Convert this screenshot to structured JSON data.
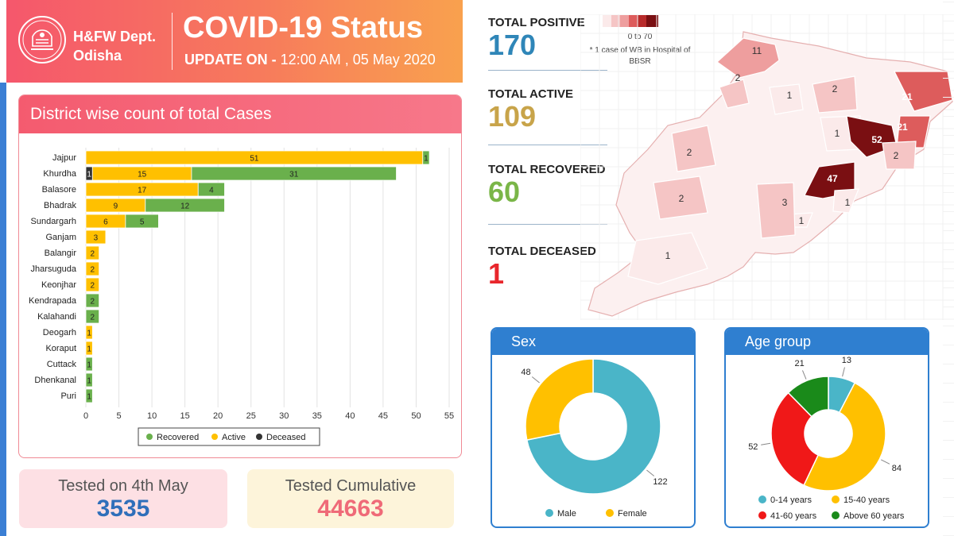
{
  "header": {
    "dept_line1": "H&FW Dept.",
    "dept_line2": "Odisha",
    "title": "COVID-19 Status",
    "update_prefix": "UPDATE ON - ",
    "update_value": "12:00 AM , 05 May 2020"
  },
  "district_chart_title": "District wise count of total Cases",
  "stats": {
    "positive": {
      "label": "TOTAL POSITIVE",
      "value": "170",
      "color": "#2f86b8"
    },
    "active": {
      "label": "TOTAL ACTIVE",
      "value": "109",
      "color": "#c8a44a"
    },
    "recovered": {
      "label": "TOTAL RECOVERED",
      "value": "60",
      "color": "#7ab648"
    },
    "deceased": {
      "label": "TOTAL DECEASED",
      "value": "1",
      "color": "#e8262c"
    }
  },
  "map_legend": {
    "range": "0 to 70",
    "note": "* 1 case of WB in Hospital of BBSR",
    "colors": [
      "#fbeaea",
      "#f5c5c5",
      "#ee9e9e",
      "#dd5c5c",
      "#b82b2b",
      "#7a0f12"
    ]
  },
  "map_labels": [
    {
      "text": "11",
      "value": 11
    },
    {
      "text": "2",
      "value": 2
    },
    {
      "text": "1",
      "value": 1
    },
    {
      "text": "2",
      "value": 2
    },
    {
      "text": "21",
      "value": 21
    },
    {
      "text": "21",
      "value": 21
    },
    {
      "text": "1",
      "value": 1
    },
    {
      "text": "52",
      "value": 52
    },
    {
      "text": "2",
      "value": 2
    },
    {
      "text": "2",
      "value": 2
    },
    {
      "text": "47",
      "value": 47
    },
    {
      "text": "1",
      "value": 1
    },
    {
      "text": "1",
      "value": 1
    },
    {
      "text": "2",
      "value": 2
    },
    {
      "text": "3",
      "value": 3
    },
    {
      "text": "1",
      "value": 1
    }
  ],
  "tested": {
    "day_label": "Tested on 4th May",
    "day_value": "3535",
    "cum_label": "Tested Cumulative",
    "cum_value": "44663"
  },
  "sex_card_title": "Sex",
  "age_card_title": "Age group",
  "chart_data": [
    {
      "type": "bar",
      "orientation": "horizontal",
      "stacked": true,
      "categories": [
        "Jajpur",
        "Khurdha",
        "Balasore",
        "Bhadrak",
        "Sundargarh",
        "Ganjam",
        "Balangir",
        "Jharsuguda",
        "Keonjhar",
        "Kendrapada",
        "Kalahandi",
        "Deogarh",
        "Koraput",
        "Cuttack",
        "Dhenkanal",
        "Puri"
      ],
      "series": [
        {
          "name": "Deceased",
          "color": "#333333",
          "values": [
            0,
            1,
            0,
            0,
            0,
            0,
            0,
            0,
            0,
            0,
            0,
            0,
            0,
            0,
            0,
            0
          ]
        },
        {
          "name": "Active",
          "color": "#ffc000",
          "values": [
            51,
            15,
            17,
            9,
            6,
            3,
            2,
            2,
            2,
            0,
            0,
            1,
            1,
            0,
            0,
            0
          ]
        },
        {
          "name": "Recovered",
          "color": "#6ab04c",
          "values": [
            1,
            31,
            4,
            12,
            5,
            0,
            0,
            0,
            0,
            2,
            2,
            0,
            0,
            1,
            1,
            1
          ]
        }
      ],
      "legend_order": [
        "Recovered",
        "Active",
        "Deceased"
      ],
      "xlim": [
        0,
        55
      ],
      "xticks": [
        0,
        5,
        10,
        15,
        20,
        25,
        30,
        35,
        40,
        45,
        50,
        55
      ],
      "grid": true,
      "legend_position": "bottom"
    },
    {
      "type": "pie",
      "donut": true,
      "labels": [
        "Male",
        "Female"
      ],
      "values": [
        122,
        48
      ],
      "colors": [
        "#4ab5c8",
        "#ffc000"
      ],
      "legend_position": "bottom"
    },
    {
      "type": "pie",
      "donut": true,
      "labels": [
        "0-14 years",
        "15-40 years",
        "41-60 years",
        "Above 60 years"
      ],
      "values": [
        13,
        84,
        52,
        21
      ],
      "colors": [
        "#4ab5c8",
        "#ffc000",
        "#f01818",
        "#1a8a1a"
      ],
      "legend_position": "bottom"
    }
  ]
}
